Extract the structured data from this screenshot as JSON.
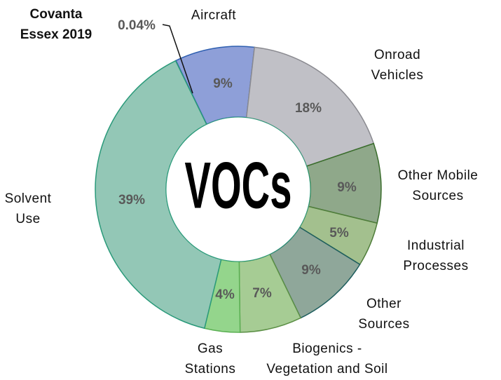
{
  "chart_data": {
    "type": "pie",
    "title": "VOCs",
    "categories": [
      "Covanta Essex 2019",
      "Aircraft",
      "Onroad Vehicles",
      "Other Mobile Sources",
      "Industrial Processes",
      "Other Sources",
      "Biogenics - Vegetation and Soil",
      "Gas Stations",
      "Solvent Use"
    ],
    "values": [
      0.04,
      9,
      18,
      9,
      5,
      9,
      7,
      4,
      39
    ],
    "value_labels": [
      "0.04%",
      "9%",
      "18%",
      "9%",
      "5%",
      "9%",
      "7%",
      "4%",
      "39%"
    ],
    "colors": [
      "#4a6fc0",
      "#8e9fd8",
      "#c0c0c6",
      "#8fa88a",
      "#a3c08e",
      "#8fa79a",
      "#a6cc94",
      "#94d58c",
      "#93c7b6"
    ]
  }
}
